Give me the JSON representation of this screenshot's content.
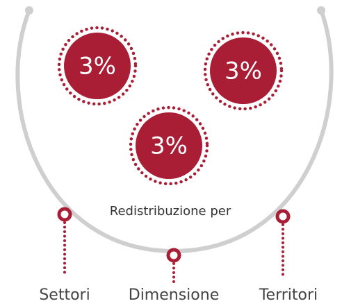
{
  "bubbles": [
    {
      "label": "3%"
    },
    {
      "label": "3%"
    },
    {
      "label": "3%"
    }
  ],
  "center_label": "Redistribuzione per",
  "branches": [
    {
      "label": "Settori"
    },
    {
      "label": "Dimensione"
    },
    {
      "label": "Territori"
    }
  ]
}
